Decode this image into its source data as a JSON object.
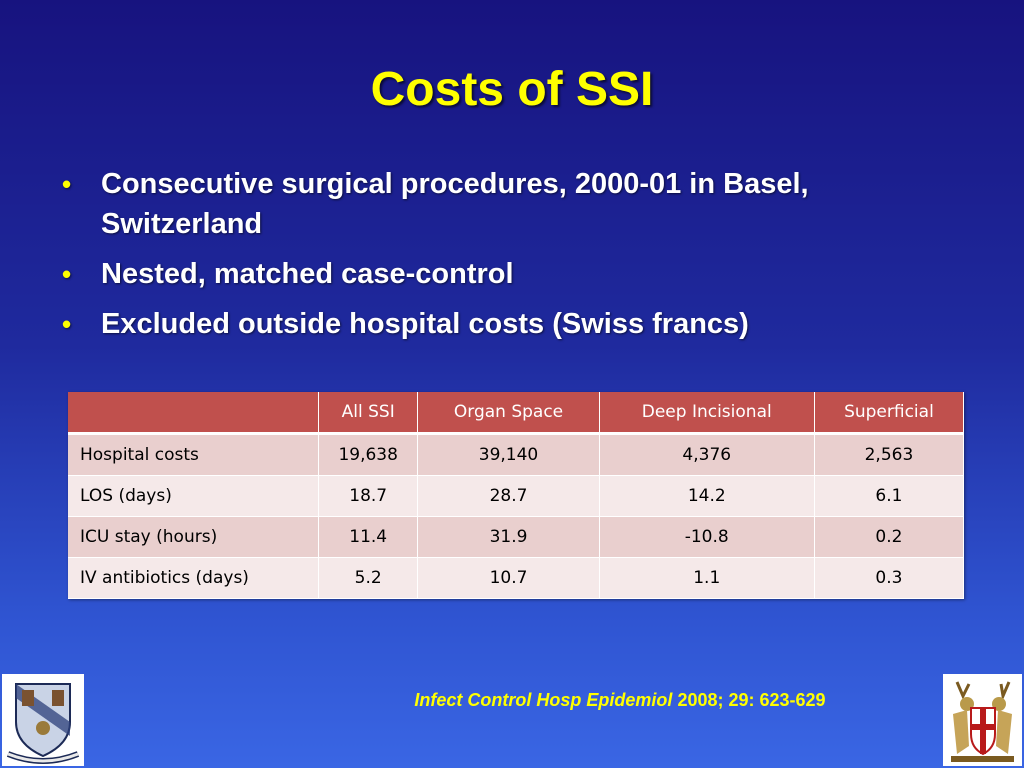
{
  "slide": {
    "title": "Costs of SSI",
    "bullets": [
      "Consecutive surgical procedures, 2000-01 in Basel, Switzerland",
      "Nested, matched case-control",
      "Excluded outside hospital costs (Swiss francs)"
    ]
  },
  "table": {
    "headers": [
      "",
      "All SSI",
      "Organ Space",
      "Deep Incisional",
      "Superficial"
    ],
    "rows": [
      {
        "label": "Hospital costs",
        "values": [
          "19,638",
          "39,140",
          "4,376",
          "2,563"
        ]
      },
      {
        "label": "LOS (days)",
        "values": [
          "18.7",
          "28.7",
          "14.2",
          "6.1"
        ]
      },
      {
        "label": "ICU stay (hours)",
        "values": [
          "11.4",
          "31.9",
          "-10.8",
          "0.2"
        ]
      },
      {
        "label": "IV antibiotics (days)",
        "values": [
          "5.2",
          "10.7",
          "1.1",
          "0.3"
        ]
      }
    ]
  },
  "citation": {
    "journal": "Infect Control Hosp Epidemiol",
    "details": " 2008; 29: 623-629"
  },
  "logos": {
    "left": "university-crest-icon",
    "right": "coat-of-arms-icon"
  },
  "colors": {
    "title": "#ffff00",
    "header_fill": "#c0504d",
    "row_odd": "#e9cfce",
    "row_even": "#f5e9e9"
  }
}
